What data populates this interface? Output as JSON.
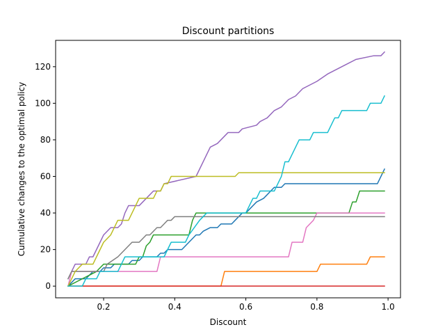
{
  "chart_data": {
    "type": "line",
    "title": "Discount partitions",
    "xlabel": "Discount",
    "ylabel": "Cumulative changes to the optimal policy",
    "xlim": [
      0.065,
      1.035
    ],
    "ylim": [
      -6.4,
      134.4
    ],
    "xticks": [
      0.2,
      0.4,
      0.6,
      0.8,
      1.0
    ],
    "xtick_labels": [
      "0.2",
      "0.4",
      "0.6",
      "0.8",
      "1.0"
    ],
    "yticks": [
      0,
      20,
      40,
      60,
      80,
      100,
      120
    ],
    "ytick_labels": [
      "0",
      "20",
      "40",
      "60",
      "80",
      "100",
      "120"
    ],
    "grid": false,
    "series": [
      {
        "color": "#1f77b4",
        "points": [
          [
            0.1,
            0
          ],
          [
            0.12,
            4
          ],
          [
            0.15,
            4
          ],
          [
            0.17,
            8
          ],
          [
            0.19,
            8
          ],
          [
            0.2,
            10
          ],
          [
            0.22,
            10
          ],
          [
            0.23,
            12
          ],
          [
            0.27,
            12
          ],
          [
            0.28,
            14
          ],
          [
            0.3,
            14
          ],
          [
            0.31,
            16
          ],
          [
            0.35,
            16
          ],
          [
            0.36,
            18
          ],
          [
            0.37,
            18
          ],
          [
            0.38,
            20
          ],
          [
            0.42,
            20
          ],
          [
            0.43,
            22
          ],
          [
            0.44,
            24
          ],
          [
            0.45,
            26
          ],
          [
            0.46,
            28
          ],
          [
            0.47,
            28
          ],
          [
            0.48,
            30
          ],
          [
            0.5,
            32
          ],
          [
            0.52,
            32
          ],
          [
            0.53,
            34
          ],
          [
            0.56,
            34
          ],
          [
            0.57,
            36
          ],
          [
            0.58,
            38
          ],
          [
            0.59,
            40
          ],
          [
            0.6,
            40
          ],
          [
            0.61,
            42
          ],
          [
            0.62,
            44
          ],
          [
            0.63,
            46
          ],
          [
            0.65,
            48
          ],
          [
            0.66,
            50
          ],
          [
            0.67,
            52
          ],
          [
            0.68,
            54
          ],
          [
            0.7,
            54
          ],
          [
            0.71,
            56
          ],
          [
            0.97,
            56
          ],
          [
            0.98,
            60
          ],
          [
            0.99,
            64
          ]
        ]
      },
      {
        "color": "#ff7f0e",
        "points": [
          [
            0.1,
            0
          ],
          [
            0.53,
            0
          ],
          [
            0.54,
            8
          ],
          [
            0.8,
            8
          ],
          [
            0.81,
            12
          ],
          [
            0.94,
            12
          ],
          [
            0.95,
            16
          ],
          [
            0.99,
            16
          ]
        ]
      },
      {
        "color": "#2ca02c",
        "points": [
          [
            0.1,
            0
          ],
          [
            0.18,
            8
          ],
          [
            0.2,
            12
          ],
          [
            0.29,
            12
          ],
          [
            0.3,
            16
          ],
          [
            0.31,
            16
          ],
          [
            0.32,
            22
          ],
          [
            0.33,
            24
          ],
          [
            0.34,
            28
          ],
          [
            0.44,
            28
          ],
          [
            0.45,
            36
          ],
          [
            0.46,
            40
          ],
          [
            0.89,
            40
          ],
          [
            0.9,
            46
          ],
          [
            0.91,
            46
          ],
          [
            0.92,
            52
          ],
          [
            0.99,
            52
          ]
        ]
      },
      {
        "color": "#d62728",
        "points": [
          [
            0.1,
            0
          ],
          [
            0.99,
            0
          ]
        ]
      },
      {
        "color": "#9467bd",
        "points": [
          [
            0.1,
            4
          ],
          [
            0.12,
            12
          ],
          [
            0.15,
            12
          ],
          [
            0.16,
            16
          ],
          [
            0.17,
            16
          ],
          [
            0.18,
            20
          ],
          [
            0.19,
            24
          ],
          [
            0.2,
            28
          ],
          [
            0.21,
            30
          ],
          [
            0.22,
            32
          ],
          [
            0.24,
            32
          ],
          [
            0.25,
            34
          ],
          [
            0.26,
            40
          ],
          [
            0.27,
            44
          ],
          [
            0.3,
            44
          ],
          [
            0.31,
            46
          ],
          [
            0.32,
            48
          ],
          [
            0.33,
            50
          ],
          [
            0.34,
            52
          ],
          [
            0.36,
            52
          ],
          [
            0.37,
            56
          ],
          [
            0.46,
            60
          ],
          [
            0.49,
            72
          ],
          [
            0.5,
            76
          ],
          [
            0.52,
            78
          ],
          [
            0.53,
            80
          ],
          [
            0.54,
            82
          ],
          [
            0.55,
            84
          ],
          [
            0.58,
            84
          ],
          [
            0.59,
            86
          ],
          [
            0.63,
            88
          ],
          [
            0.64,
            90
          ],
          [
            0.66,
            92
          ],
          [
            0.68,
            96
          ],
          [
            0.7,
            98
          ],
          [
            0.72,
            102
          ],
          [
            0.74,
            104
          ],
          [
            0.76,
            108
          ],
          [
            0.78,
            110
          ],
          [
            0.8,
            112
          ],
          [
            0.83,
            116
          ],
          [
            0.85,
            118
          ],
          [
            0.87,
            120
          ],
          [
            0.89,
            122
          ],
          [
            0.91,
            124
          ],
          [
            0.96,
            126
          ],
          [
            0.98,
            126
          ],
          [
            0.99,
            128
          ]
        ]
      },
      {
        "color": "#e377c2",
        "points": [
          [
            0.1,
            0
          ],
          [
            0.11,
            8
          ],
          [
            0.35,
            8
          ],
          [
            0.36,
            16
          ],
          [
            0.72,
            16
          ],
          [
            0.73,
            24
          ],
          [
            0.76,
            24
          ],
          [
            0.77,
            32
          ],
          [
            0.79,
            36
          ],
          [
            0.8,
            40
          ],
          [
            0.99,
            40
          ]
        ]
      },
      {
        "color": "#7f7f7f",
        "points": [
          [
            0.1,
            4
          ],
          [
            0.11,
            8
          ],
          [
            0.2,
            8
          ],
          [
            0.21,
            12
          ],
          [
            0.24,
            16
          ],
          [
            0.25,
            18
          ],
          [
            0.26,
            20
          ],
          [
            0.27,
            22
          ],
          [
            0.28,
            24
          ],
          [
            0.3,
            24
          ],
          [
            0.31,
            26
          ],
          [
            0.32,
            28
          ],
          [
            0.33,
            28
          ],
          [
            0.34,
            30
          ],
          [
            0.35,
            32
          ],
          [
            0.36,
            32
          ],
          [
            0.37,
            34
          ],
          [
            0.38,
            36
          ],
          [
            0.39,
            36
          ],
          [
            0.4,
            38
          ],
          [
            0.6,
            38
          ],
          [
            0.61,
            38
          ],
          [
            0.99,
            38
          ]
        ]
      },
      {
        "color": "#bcbd22",
        "points": [
          [
            0.1,
            0
          ],
          [
            0.11,
            4
          ],
          [
            0.12,
            8
          ],
          [
            0.14,
            12
          ],
          [
            0.17,
            12
          ],
          [
            0.19,
            20
          ],
          [
            0.2,
            24
          ],
          [
            0.22,
            28
          ],
          [
            0.23,
            32
          ],
          [
            0.24,
            36
          ],
          [
            0.27,
            36
          ],
          [
            0.28,
            40
          ],
          [
            0.29,
            44
          ],
          [
            0.3,
            48
          ],
          [
            0.34,
            48
          ],
          [
            0.35,
            52
          ],
          [
            0.36,
            52
          ],
          [
            0.37,
            56
          ],
          [
            0.38,
            56
          ],
          [
            0.39,
            60
          ],
          [
            0.57,
            60
          ],
          [
            0.58,
            62
          ],
          [
            0.99,
            62
          ]
        ]
      },
      {
        "color": "#17becf",
        "points": [
          [
            0.1,
            0
          ],
          [
            0.14,
            0
          ],
          [
            0.15,
            4
          ],
          [
            0.18,
            4
          ],
          [
            0.19,
            8
          ],
          [
            0.24,
            8
          ],
          [
            0.25,
            12
          ],
          [
            0.26,
            16
          ],
          [
            0.37,
            16
          ],
          [
            0.38,
            20
          ],
          [
            0.39,
            24
          ],
          [
            0.43,
            24
          ],
          [
            0.44,
            28
          ],
          [
            0.47,
            36
          ],
          [
            0.49,
            40
          ],
          [
            0.6,
            40
          ],
          [
            0.61,
            44
          ],
          [
            0.62,
            48
          ],
          [
            0.63,
            48
          ],
          [
            0.64,
            52
          ],
          [
            0.68,
            52
          ],
          [
            0.7,
            60
          ],
          [
            0.71,
            68
          ],
          [
            0.72,
            68
          ],
          [
            0.73,
            72
          ],
          [
            0.74,
            76
          ],
          [
            0.75,
            80
          ],
          [
            0.78,
            80
          ],
          [
            0.79,
            84
          ],
          [
            0.83,
            84
          ],
          [
            0.84,
            88
          ],
          [
            0.85,
            92
          ],
          [
            0.86,
            92
          ],
          [
            0.87,
            96
          ],
          [
            0.94,
            96
          ],
          [
            0.95,
            100
          ],
          [
            0.97,
            100
          ],
          [
            0.98,
            100
          ],
          [
            0.99,
            104
          ]
        ]
      }
    ]
  }
}
